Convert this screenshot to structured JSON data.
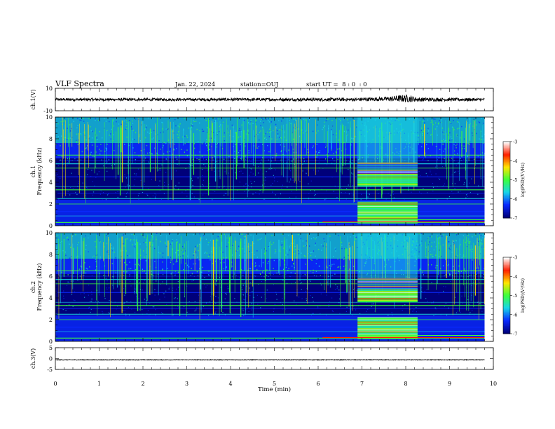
{
  "header": {
    "title": "VLF Spectra",
    "date": "Jan. 22, 2024",
    "station": "station=OUJ",
    "start": "start UT =  8 : 0  : 0"
  },
  "colors": {
    "deep": "#00007a",
    "blue": "#0a2aff",
    "cyan": "#18d6e8",
    "green": "#3cff3c",
    "yellow": "#ffe600",
    "red": "#ff2000",
    "white": "#ffffff"
  },
  "chart_data": [
    {
      "id": "ch1-waveform",
      "type": "line",
      "ylabel": "ch.1(V)",
      "ylim": [
        -10,
        10
      ],
      "yticks": [
        "10",
        "-10"
      ],
      "x": [
        0,
        1,
        2,
        3,
        4,
        5,
        6,
        6.8,
        7.5,
        8.0,
        8.3,
        9.0,
        9.8
      ],
      "values": [
        0,
        0,
        0,
        0,
        0,
        0,
        0,
        0,
        0.5,
        1,
        0,
        0,
        0
      ],
      "envelope": [
        1.2,
        1.2,
        1.2,
        1.2,
        1.3,
        1.3,
        1.4,
        1.5,
        1.8,
        3.5,
        1.8,
        1.4,
        1.3
      ]
    },
    {
      "id": "ch1-spectrogram",
      "type": "heatmap",
      "ylabel": "ch.1",
      "ylabel2": "Frequency (kHz)",
      "ylim": [
        0,
        10
      ],
      "yticks": [
        "0",
        "2",
        "4",
        "6",
        "8",
        "10"
      ],
      "xlim": [
        0,
        9.8
      ],
      "colorbar": {
        "label": "log(PSD)(V²/Hz)",
        "range": [
          -7,
          -3
        ],
        "ticks": [
          "-3",
          "-4",
          "-5",
          "-6",
          "-7"
        ]
      },
      "burst": {
        "t_start": 6.9,
        "t_end": 8.27,
        "bands_khz": [
          [
            0.2,
            2.2
          ],
          [
            3.6,
            4.8
          ],
          [
            4.8,
            5.8
          ]
        ]
      },
      "lines_khz": [
        0.3,
        0.9,
        1.3,
        2.0,
        2.5,
        3.0,
        3.3,
        3.6,
        4.5,
        5.3,
        5.7,
        6.0,
        6.5
      ]
    },
    {
      "id": "ch2-spectrogram",
      "type": "heatmap",
      "ylabel": "ch.2",
      "ylabel2": "Frequency (kHz)",
      "ylim": [
        0,
        10
      ],
      "yticks": [
        "0",
        "2",
        "4",
        "6",
        "8",
        "10"
      ],
      "xlim": [
        0,
        9.8
      ],
      "colorbar": {
        "label": "log(PSD)(V²/Hz)",
        "range": [
          -7,
          -3
        ],
        "ticks": [
          "-3",
          "-4",
          "-5",
          "-6",
          "-7"
        ]
      },
      "burst": {
        "t_start": 6.9,
        "t_end": 8.27,
        "bands_khz": [
          [
            0.2,
            2.2
          ],
          [
            3.6,
            4.8
          ],
          [
            4.8,
            5.8
          ]
        ]
      },
      "lines_khz": [
        0.3,
        0.9,
        1.3,
        2.0,
        2.5,
        3.0,
        3.3,
        3.6,
        4.5,
        5.3,
        5.7,
        6.0,
        6.5
      ]
    },
    {
      "id": "ch3-waveform",
      "type": "line",
      "ylabel": "ch.3(V)",
      "ylim": [
        -5,
        5
      ],
      "yticks": [
        "5",
        "0",
        "-5"
      ],
      "x": [
        0,
        9.8
      ],
      "values": [
        -0.6,
        -0.6
      ],
      "envelope": [
        0.15,
        0.15
      ]
    }
  ],
  "xaxis": {
    "label": "Time (min)",
    "ticks": [
      "0",
      "1",
      "2",
      "3",
      "4",
      "5",
      "6",
      "7",
      "8",
      "9",
      "10"
    ],
    "xlim": [
      0,
      10
    ]
  }
}
